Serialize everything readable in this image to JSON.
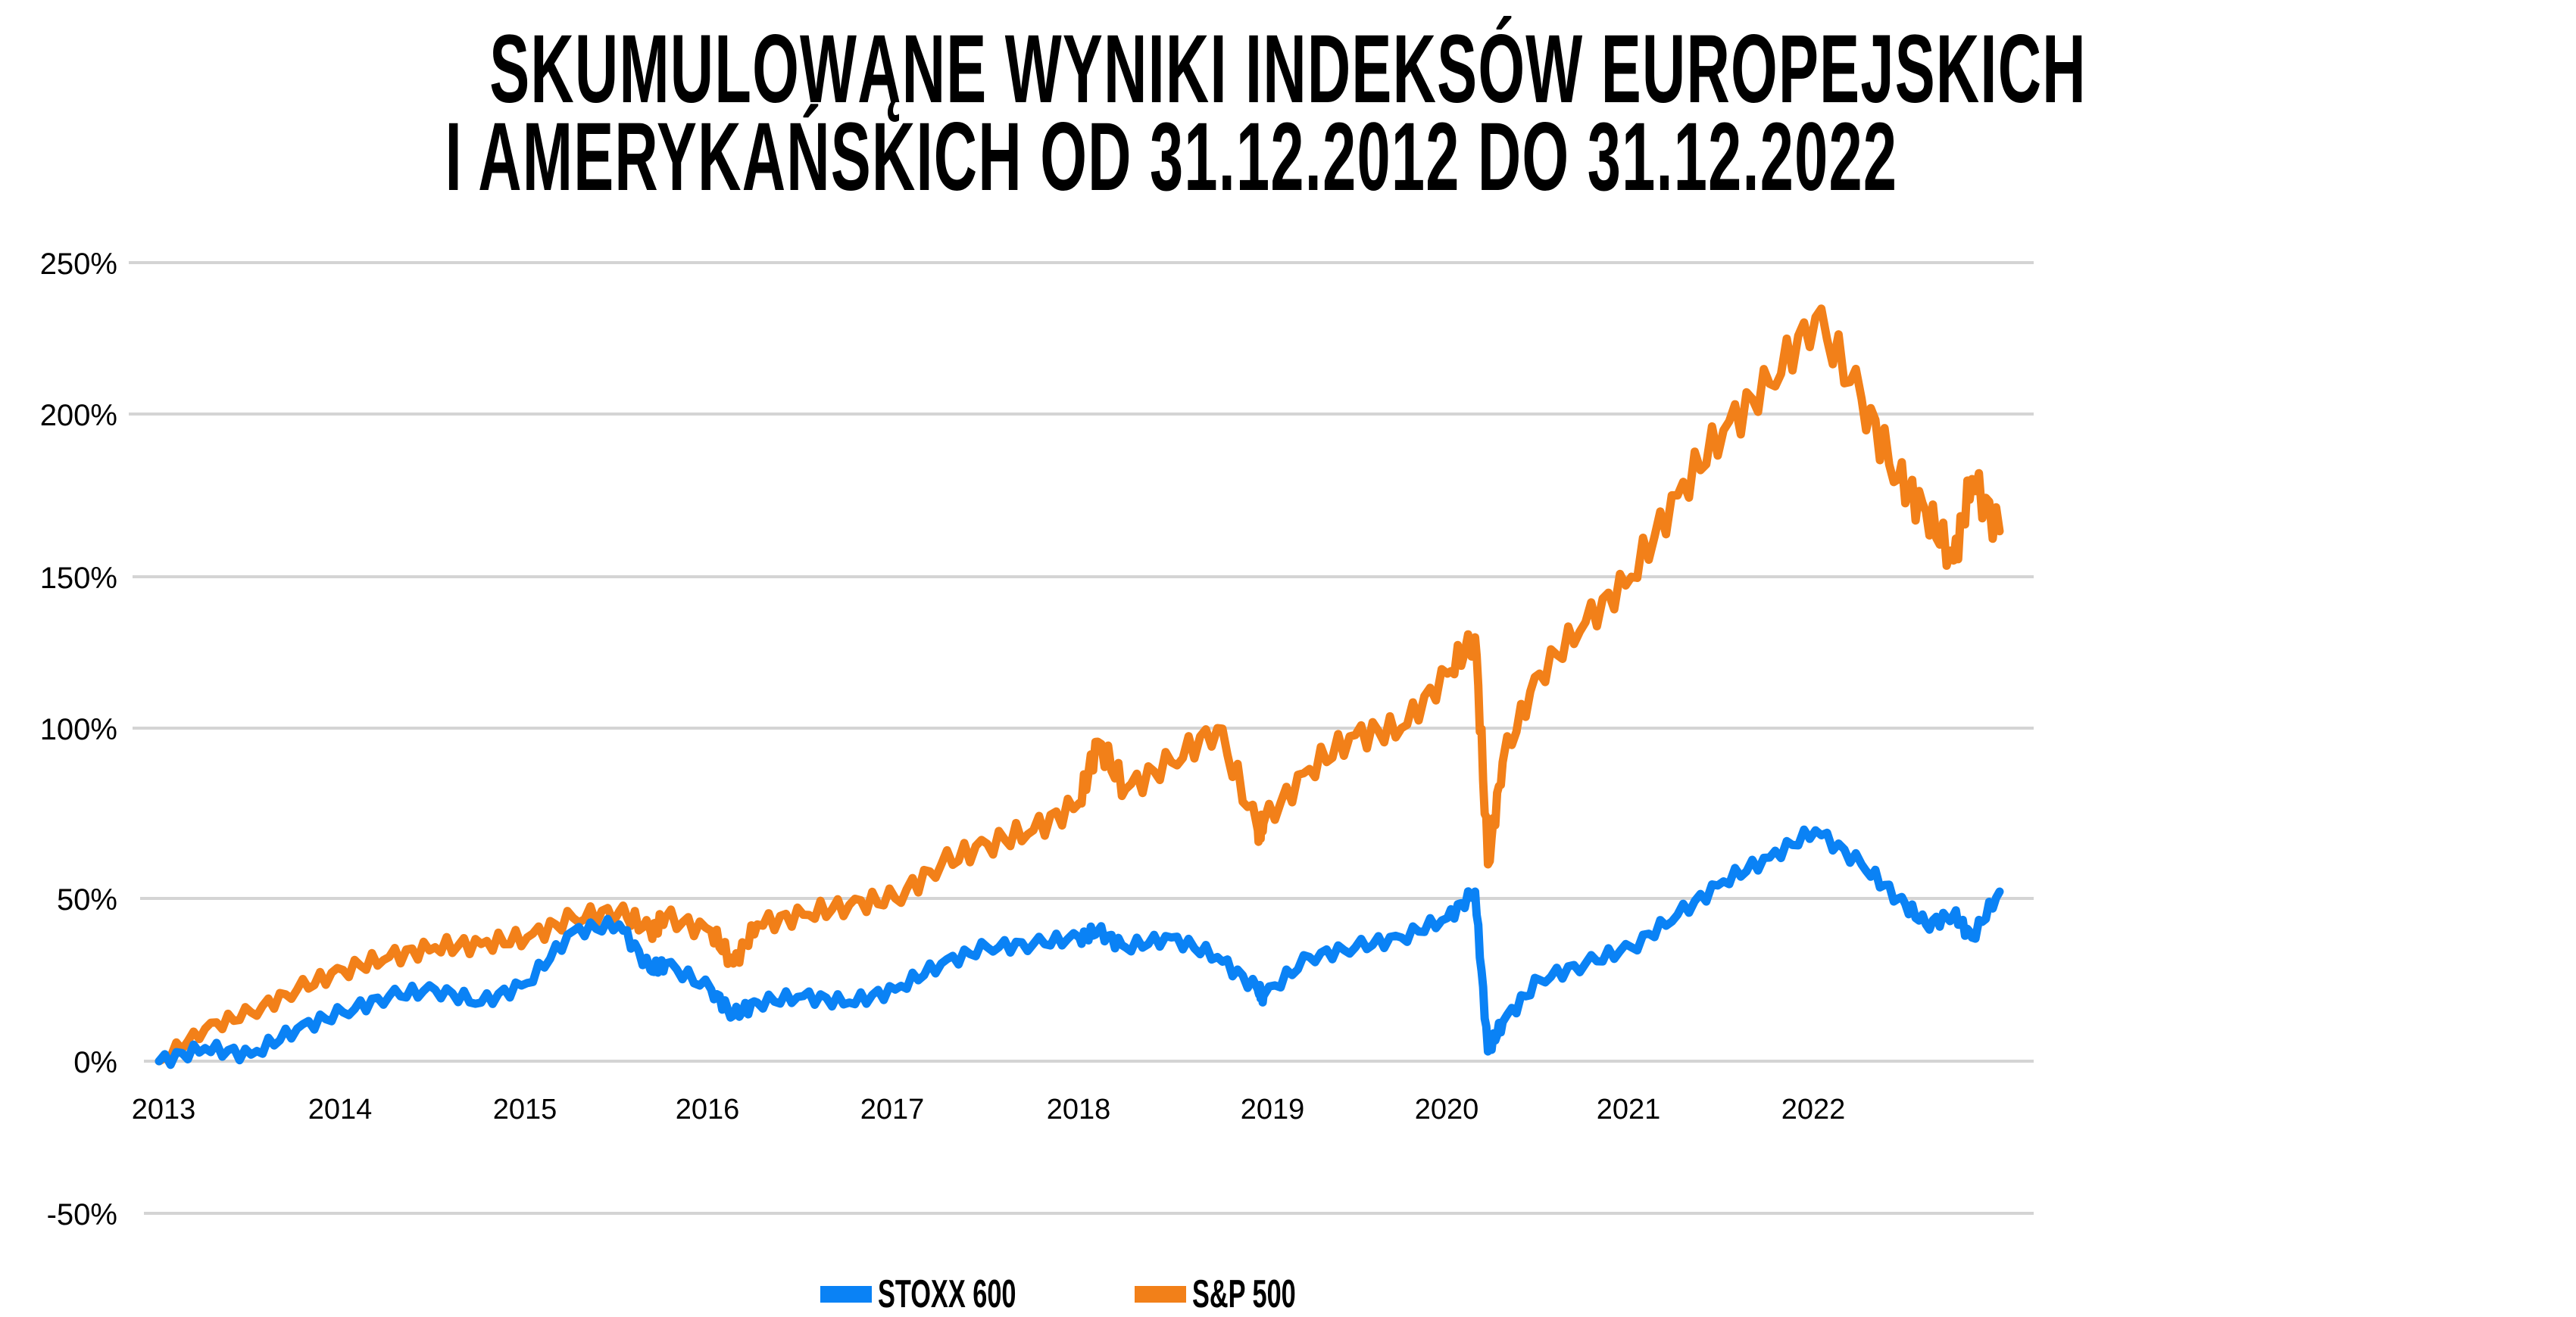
{
  "title": {
    "line1": "SKUMULOWĄNE WYNIKI INDEKSÓW EUROPEJSKICH",
    "line2": "I AMERYKAŃSKICH OD 31.12.2012 DO 31.12.2022"
  },
  "legend": {
    "items": [
      {
        "label": "STOXX 600",
        "color": "#0A82F5"
      },
      {
        "label": "S&P 500",
        "color": "#F28019"
      }
    ]
  },
  "y_axis": {
    "ticks": [
      "250%",
      "200%",
      "150%",
      "100%",
      "50%",
      "0%",
      "-50%"
    ]
  },
  "x_axis": {
    "ticks": [
      "2013",
      "2014",
      "2015",
      "2016",
      "2017",
      "2018",
      "2019",
      "2020",
      "2021",
      "2022"
    ]
  },
  "chart_data": {
    "type": "line",
    "title": "SKUMULOWĄNE WYNIKI INDEKSÓW EUROPEJSKICH I AMERYKAŃSKICH OD 31.12.2012 DO 31.12.2022",
    "xlabel": "",
    "ylabel": "",
    "ylim": [
      -50,
      250
    ],
    "grid": true,
    "legend_position": "bottom",
    "x": [
      2013.0,
      2013.25,
      2013.5,
      2013.75,
      2014.0,
      2014.25,
      2014.5,
      2014.75,
      2015.0,
      2015.25,
      2015.5,
      2015.67,
      2015.75,
      2016.0,
      2016.12,
      2016.25,
      2016.5,
      2016.75,
      2017.0,
      2017.25,
      2017.5,
      2017.75,
      2018.0,
      2018.1,
      2018.25,
      2018.5,
      2018.75,
      2018.97,
      2019.0,
      2019.25,
      2019.5,
      2019.75,
      2020.0,
      2020.15,
      2020.22,
      2020.3,
      2020.5,
      2020.75,
      2021.0,
      2021.25,
      2021.5,
      2021.75,
      2022.0,
      2022.25,
      2022.45,
      2022.6,
      2022.75,
      2022.85,
      2023.0
    ],
    "series": [
      {
        "name": "STOXX 600",
        "color": "#0A82F5",
        "values": [
          0,
          4,
          2,
          10,
          15,
          20,
          22,
          18,
          24,
          40,
          42,
          28,
          30,
          22,
          14,
          18,
          20,
          18,
          22,
          30,
          35,
          36,
          38,
          40,
          35,
          38,
          32,
          22,
          20,
          32,
          35,
          38,
          44,
          52,
          3,
          12,
          25,
          30,
          35,
          45,
          55,
          62,
          70,
          60,
          50,
          42,
          45,
          38,
          52
        ]
      },
      {
        "name": "S&P 500",
        "color": "#F28019",
        "values": [
          0,
          10,
          15,
          22,
          28,
          32,
          35,
          36,
          38,
          44,
          46,
          40,
          44,
          40,
          30,
          42,
          45,
          48,
          50,
          60,
          66,
          70,
          78,
          96,
          82,
          90,
          100,
          70,
          72,
          88,
          98,
          100,
          118,
          130,
          60,
          90,
          118,
          135,
          150,
          175,
          195,
          210,
          232,
          205,
          180,
          170,
          155,
          180,
          164
        ]
      }
    ]
  }
}
